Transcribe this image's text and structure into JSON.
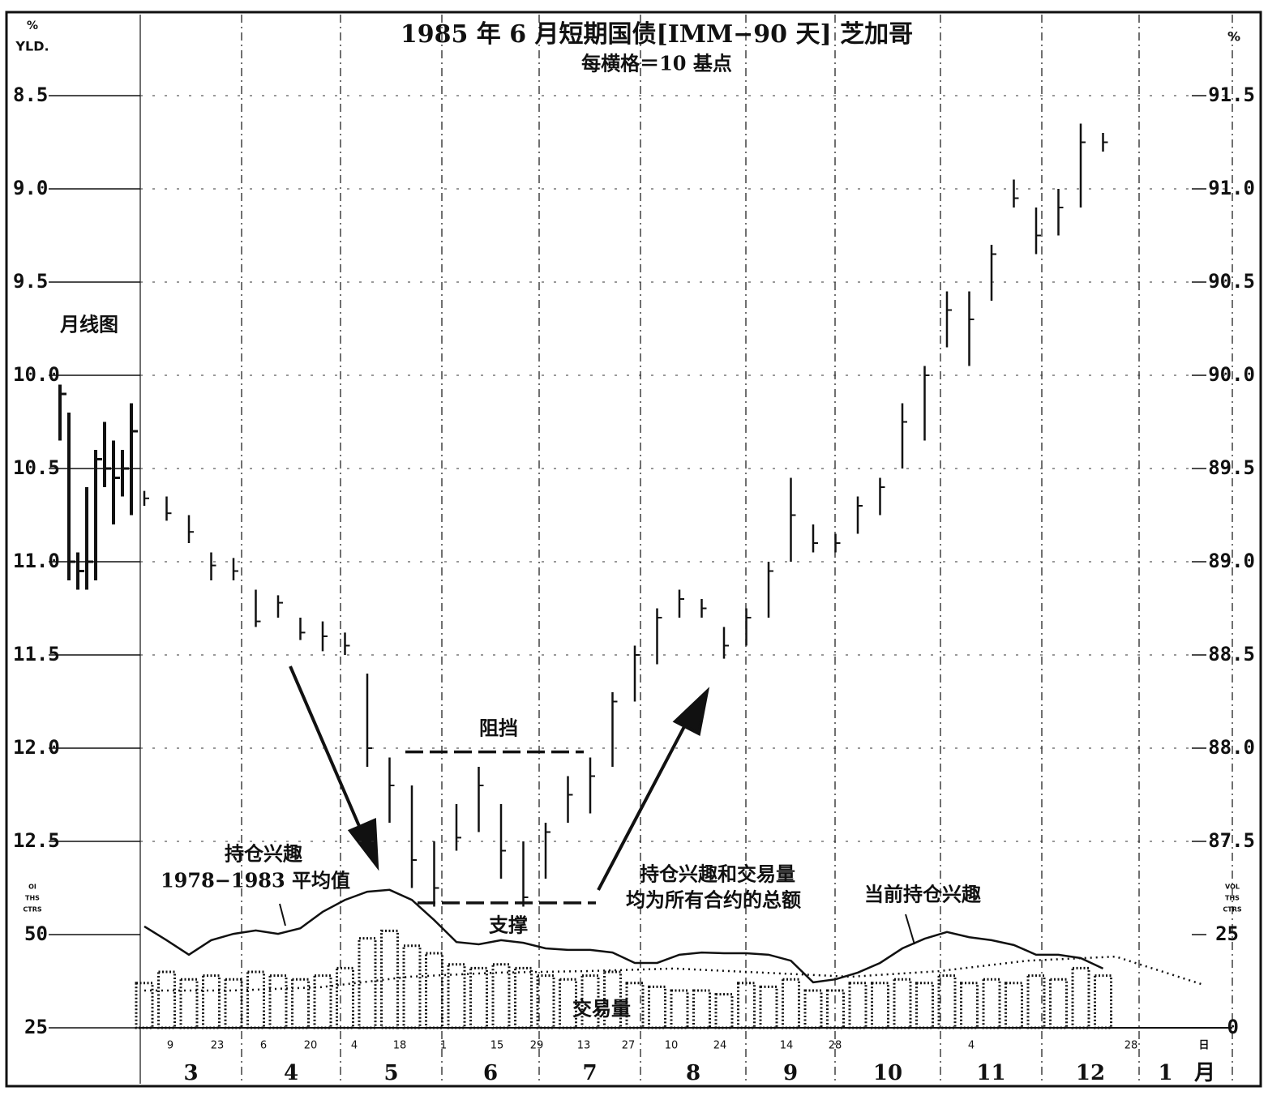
{
  "chart_data": {
    "type": "ohlc",
    "title": "1985 年 6 月短期国债[IMM−90 天]  芝加哥",
    "subtitle": "每横格＝10 基点",
    "y_label": [
      "%",
      "YLD."
    ],
    "y2_label": "%",
    "ylim": [
      8.5,
      12.5
    ],
    "yticks": [
      8.5,
      {
        "value": 9,
        "label": "9.0"
      },
      9.5,
      {
        "value": 10,
        "label": "10.0"
      },
      10.5,
      {
        "value": 11,
        "label": "11.0"
      },
      11.5,
      {
        "value": 12,
        "label": "12.0"
      },
      12.5
    ],
    "y2lim": [
      91.5,
      87.5
    ],
    "y2ticks": [
      91.5,
      {
        "value": 91,
        "label": "91.0"
      },
      90.5,
      {
        "value": 90,
        "label": "90.0"
      },
      89.5,
      {
        "value": 89,
        "label": "89.0"
      },
      88.5,
      {
        "value": 88,
        "label": "88.0"
      },
      87.5
    ],
    "grid": true,
    "monthly_bars": {
      "name": "月线图",
      "high": [
        10.35,
        11.1,
        11.15,
        11.15,
        11.1,
        10.6,
        10.8,
        10.65,
        10.75
      ],
      "low": [
        10.05,
        10.2,
        10.95,
        10.6,
        10.4,
        10.25,
        10.35,
        10.4,
        10.15
      ],
      "close": [
        10.1,
        11.0,
        11.05,
        11.0,
        10.45,
        10.5,
        10.55,
        10.5,
        10.3
      ]
    },
    "daily_bars": {
      "high": [
        10.7,
        10.78,
        10.9,
        11.1,
        11.1,
        11.35,
        11.3,
        11.42,
        11.48,
        11.5,
        12.1,
        12.4,
        12.75,
        12.85,
        12.55,
        12.45,
        12.7,
        12.85,
        12.7,
        12.4,
        12.35,
        12.1,
        11.75,
        11.55,
        11.3,
        11.3,
        11.52,
        11.45,
        11.3,
        11.0,
        10.95,
        10.95,
        10.85,
        10.75,
        10.5,
        10.35,
        9.85,
        9.95,
        9.6,
        9.1,
        9.35,
        9.25,
        9.1,
        8.8
      ],
      "low": [
        10.62,
        10.65,
        10.75,
        10.95,
        10.98,
        11.15,
        11.18,
        11.3,
        11.32,
        11.38,
        11.6,
        12.05,
        12.2,
        12.5,
        12.3,
        12.1,
        12.3,
        12.5,
        12.4,
        12.15,
        12.05,
        11.7,
        11.45,
        11.25,
        11.15,
        11.2,
        11.35,
        11.25,
        11.0,
        10.55,
        10.8,
        10.85,
        10.65,
        10.55,
        10.15,
        9.95,
        9.55,
        9.55,
        9.3,
        8.95,
        9.1,
        9.0,
        8.65,
        8.7
      ],
      "close": [
        10.66,
        10.74,
        10.84,
        11.02,
        11.05,
        11.32,
        11.22,
        11.38,
        11.4,
        11.45,
        12.0,
        12.2,
        12.6,
        12.75,
        12.48,
        12.2,
        12.55,
        12.8,
        12.45,
        12.25,
        12.15,
        11.75,
        11.5,
        11.3,
        11.2,
        11.25,
        11.45,
        11.3,
        11.05,
        10.75,
        10.9,
        10.9,
        10.7,
        10.6,
        10.25,
        10.0,
        9.65,
        9.7,
        9.35,
        9.05,
        9.25,
        9.1,
        8.75,
        8.75
      ]
    },
    "resistance": {
      "label": "阻挡",
      "value": 12.02
    },
    "support": {
      "label": "支撑",
      "value": 12.83
    },
    "oi_label": [
      "OI",
      "THS",
      "CTRS"
    ],
    "vol_label": [
      "VOL",
      "THS",
      "CTRS"
    ],
    "oi_lim": [
      25,
      50
    ],
    "oi_ticks": [
      25,
      50
    ],
    "vol_lim": [
      0,
      25
    ],
    "vol_ticks": [
      0,
      25
    ],
    "open_interest": {
      "name": "当前持仓兴趣",
      "values": [
        52.2,
        48.5,
        44.6,
        48.5,
        50.2,
        51.1,
        50.2,
        51.7,
        56.1,
        59.3,
        61.5,
        62.0,
        59.3,
        53.9,
        48.0,
        47.4,
        48.5,
        47.8,
        46.3,
        45.9,
        45.9,
        45.2,
        42.4,
        42.4,
        44.6,
        45.2,
        45.0,
        45.0,
        44.6,
        43.0,
        37.2,
        38.0,
        39.8,
        42.4,
        46.3,
        48.9,
        50.7,
        49.3,
        48.5,
        47.2,
        44.6,
        44.6,
        43.7,
        40.9
      ]
    },
    "avg_open_interest": {
      "name": [
        "持仓兴趣",
        "1978−1983 平均值"
      ],
      "values": [
        35.0,
        35.0,
        35.9,
        38.7,
        39.8,
        40.2,
        40.9,
        39.8,
        38.7,
        40.2,
        43.0,
        44.1,
        36.5
      ]
    },
    "volume": {
      "name": "交易量",
      "values": [
        12,
        15,
        13,
        14,
        13,
        15,
        14,
        13,
        14,
        16,
        24,
        26,
        22,
        20,
        17,
        16,
        17,
        16,
        14,
        13,
        14,
        15,
        12,
        11,
        10,
        10,
        9,
        12,
        11,
        13,
        10,
        10,
        12,
        12,
        13,
        12,
        14,
        12,
        13,
        12,
        14,
        13,
        16,
        14
      ]
    },
    "note": [
      "持仓兴趣和交易量",
      "均为所有合约的总额"
    ],
    "days": [
      "9",
      "23",
      "6",
      "20",
      "4",
      "18",
      "1",
      "15",
      "29",
      "13",
      "27",
      "10",
      "24",
      "14",
      "28",
      "4",
      "28"
    ],
    "day_unit": "日",
    "months": [
      "3",
      "4",
      "5",
      "6",
      "7",
      "8",
      "9",
      "10",
      "11",
      "12",
      "1"
    ],
    "month_unit": "月"
  }
}
